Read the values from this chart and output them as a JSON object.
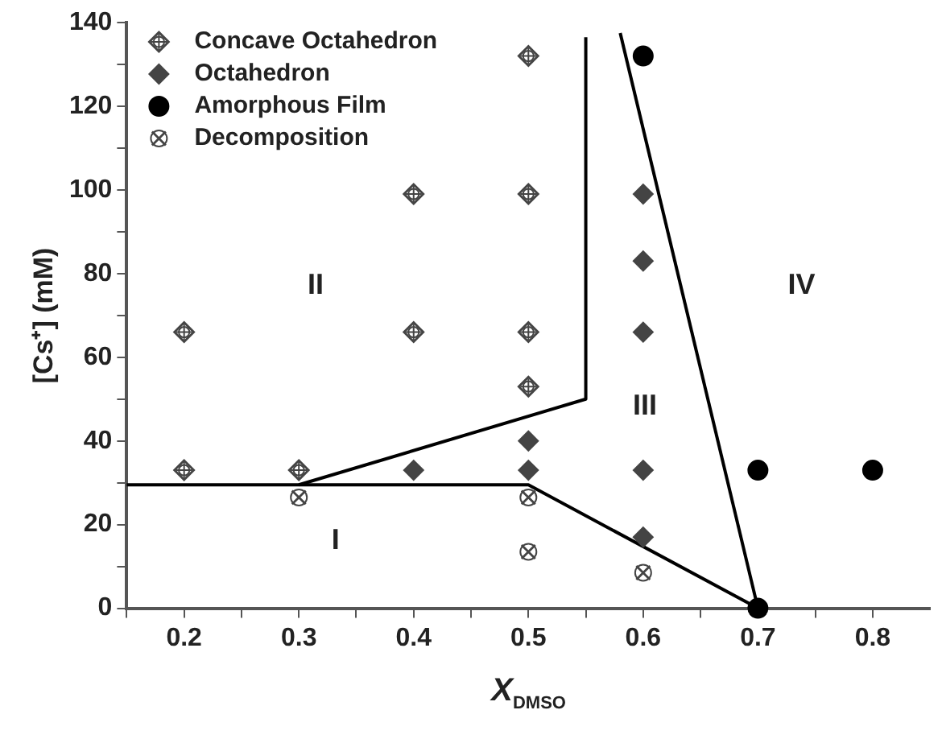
{
  "chart_data": {
    "type": "scatter",
    "xlabel": "X$_{DMSO}$",
    "ylabel": "[Cs⁺] (mM)",
    "xlim": [
      0.15,
      0.85
    ],
    "xticks": [
      {
        "value": 0.15,
        "label": null
      },
      0.2,
      {
        "value": 0.25,
        "label": null
      },
      0.3,
      {
        "value": 0.35,
        "label": null
      },
      0.4,
      {
        "value": 0.45,
        "label": null
      },
      0.5,
      {
        "value": 0.55,
        "label": null
      },
      0.6,
      {
        "value": 0.65,
        "label": null
      },
      0.7,
      {
        "value": 0.75,
        "label": null
      },
      0.8
    ],
    "ylim": [
      0,
      140
    ],
    "yticks": [
      0,
      {
        "value": 10,
        "label": null
      },
      20,
      {
        "value": 30,
        "label": null
      },
      40,
      {
        "value": 50,
        "label": null
      },
      60,
      {
        "value": 70,
        "label": null
      },
      80,
      {
        "value": 90,
        "label": null
      },
      100,
      {
        "value": 110,
        "label": null
      },
      120,
      {
        "value": 130,
        "label": null
      },
      140
    ],
    "grid": false,
    "legend": "top left",
    "series": [
      {
        "name": "Concave Octahedron",
        "type": "scatter",
        "marker": "diamond",
        "color": "#444444",
        "x": [
          0.2,
          0.2,
          0.3,
          0.4,
          0.4,
          0.5,
          0.5,
          0.5,
          0.5
        ],
        "values": [
          33,
          66,
          33,
          66,
          99,
          132,
          99,
          66,
          53
        ]
      },
      {
        "name": "Octahedron",
        "type": "scatter",
        "marker": "diamond",
        "color": "#444444",
        "x": [
          0.4,
          0.5,
          0.5,
          0.6,
          0.6,
          0.6,
          0.6,
          0.6
        ],
        "values": [
          33,
          40,
          33,
          99,
          83,
          66,
          33,
          17
        ]
      },
      {
        "name": "Amorphous Film",
        "type": "scatter",
        "marker": "circle",
        "color": "#000000",
        "x": [
          0.6,
          0.7,
          0.8,
          0.7
        ],
        "values": [
          132,
          33,
          33,
          0
        ]
      },
      {
        "name": "Decomposition",
        "type": "scatter",
        "marker": "circle",
        "color": "#444444",
        "x": [
          0.3,
          0.5,
          0.5,
          0.6
        ],
        "values": [
          26.5,
          26.5,
          13.5,
          8.5
        ]
      },
      {
        "type": "line",
        "marker": "none",
        "color": "#000000",
        "x": [
          0.15,
          0.5,
          0.7
        ],
        "values": [
          29.5,
          29.5,
          0
        ]
      },
      {
        "type": "line",
        "marker": "none",
        "color": "#000000",
        "x": [
          0.3,
          0.55,
          0.55
        ],
        "values": [
          29.5,
          50,
          136.5
        ]
      },
      {
        "type": "line",
        "marker": "none",
        "color": "#000000",
        "x": [
          0.7,
          0.58
        ],
        "values": [
          0,
          137.5
        ]
      }
    ],
    "annotations": [
      "I",
      "II",
      "III",
      "IV"
    ]
  }
}
